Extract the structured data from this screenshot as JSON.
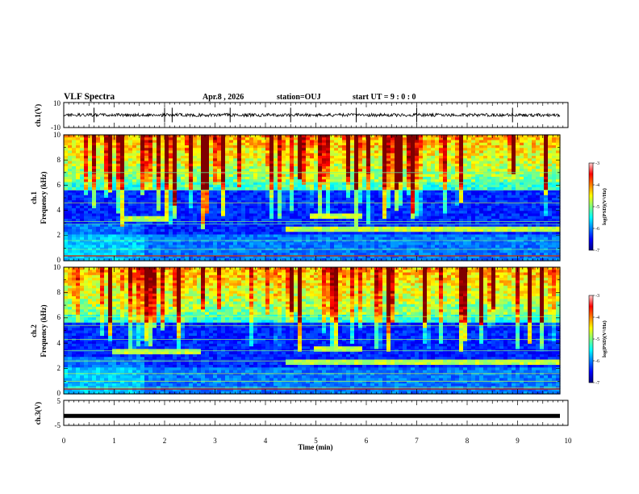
{
  "header": {
    "title": "VLF Spectra",
    "date": "Apr.8 , 2026",
    "station": "station=OUJ",
    "start": "start UT = 9 : 0 : 0"
  },
  "colors": {
    "colormap": [
      "#00007f",
      "#0000ff",
      "#007fff",
      "#00ffff",
      "#7fff7f",
      "#ffff00",
      "#ff7f00",
      "#ff0000",
      "#7f0000"
    ],
    "waveform": "#000000"
  },
  "chart_data": [
    {
      "type": "line",
      "name": "ch1-waveform",
      "ylabel": "ch.1(V)",
      "ylim": [
        -10,
        10
      ],
      "ytick_labels": [
        "10",
        "-10"
      ],
      "x_range_min": [
        0,
        10
      ],
      "baseline_volts": 0,
      "spike_times_min": [
        0.6,
        2.0,
        2.15,
        3.3,
        4.5,
        5.8,
        7.0,
        8.9
      ]
    },
    {
      "type": "heatmap",
      "name": "ch1-spectrogram",
      "ylabel_channel": "ch.1",
      "ylabel": "Frequency (kHz)",
      "ylim_khz": [
        0,
        10
      ],
      "ytick_labels": [
        "0",
        "2",
        "4",
        "6",
        "8",
        "10"
      ],
      "x_range_min": [
        0,
        10
      ],
      "colorbar": {
        "label": "log(PSD)(V²/Hz)",
        "range": [
          -7,
          -3
        ],
        "tick_labels": [
          "-3",
          "-4",
          "-5",
          "-6",
          "-7"
        ]
      },
      "features": {
        "lines_khz": [
          0.4,
          0.9,
          1.6,
          2.9,
          3.1,
          4.6,
          5.6,
          6.2,
          7.0
        ],
        "bands": [
          {
            "t_min": 1.1,
            "t_max": 2.0,
            "f_khz": 3.4
          },
          {
            "t_min": 4.9,
            "t_max": 5.9,
            "f_khz": 3.6
          },
          {
            "t_min": 4.4,
            "t_max": 9.8,
            "f_khz": 2.5
          }
        ]
      }
    },
    {
      "type": "heatmap",
      "name": "ch2-spectrogram",
      "ylabel_channel": "ch.2",
      "ylabel": "Frequency (kHz)",
      "ylim_khz": [
        0,
        10
      ],
      "ytick_labels": [
        "0",
        "2",
        "4",
        "6",
        "8",
        "10"
      ],
      "x_range_min": [
        0,
        10
      ],
      "colorbar": {
        "label": "log(PSD)(V²/Hz)",
        "range": [
          -7,
          -3
        ],
        "tick_labels": [
          "-3",
          "-4",
          "-5",
          "-6",
          "-7"
        ]
      },
      "features": {
        "lines_khz": [
          0.5,
          1.0,
          1.6,
          2.6,
          3.4,
          4.3,
          5.4,
          6.1
        ],
        "bands": [
          {
            "t_min": 1.0,
            "t_max": 2.7,
            "f_khz": 3.3
          },
          {
            "t_min": 5.0,
            "t_max": 5.9,
            "f_khz": 3.5
          },
          {
            "t_min": 4.4,
            "t_max": 9.8,
            "f_khz": 2.5
          }
        ]
      }
    },
    {
      "type": "line",
      "name": "ch3-waveform",
      "ylabel": "ch.3(V)",
      "ylim": [
        -5,
        5
      ],
      "ytick_labels": [
        "5",
        "-5"
      ],
      "x_range_min": [
        0,
        10
      ],
      "level_volts": -1.2
    }
  ],
  "xaxis": {
    "label": "Time (min)",
    "tick_labels": [
      "0",
      "1",
      "2",
      "3",
      "4",
      "5",
      "6",
      "7",
      "8",
      "9",
      "10"
    ]
  }
}
